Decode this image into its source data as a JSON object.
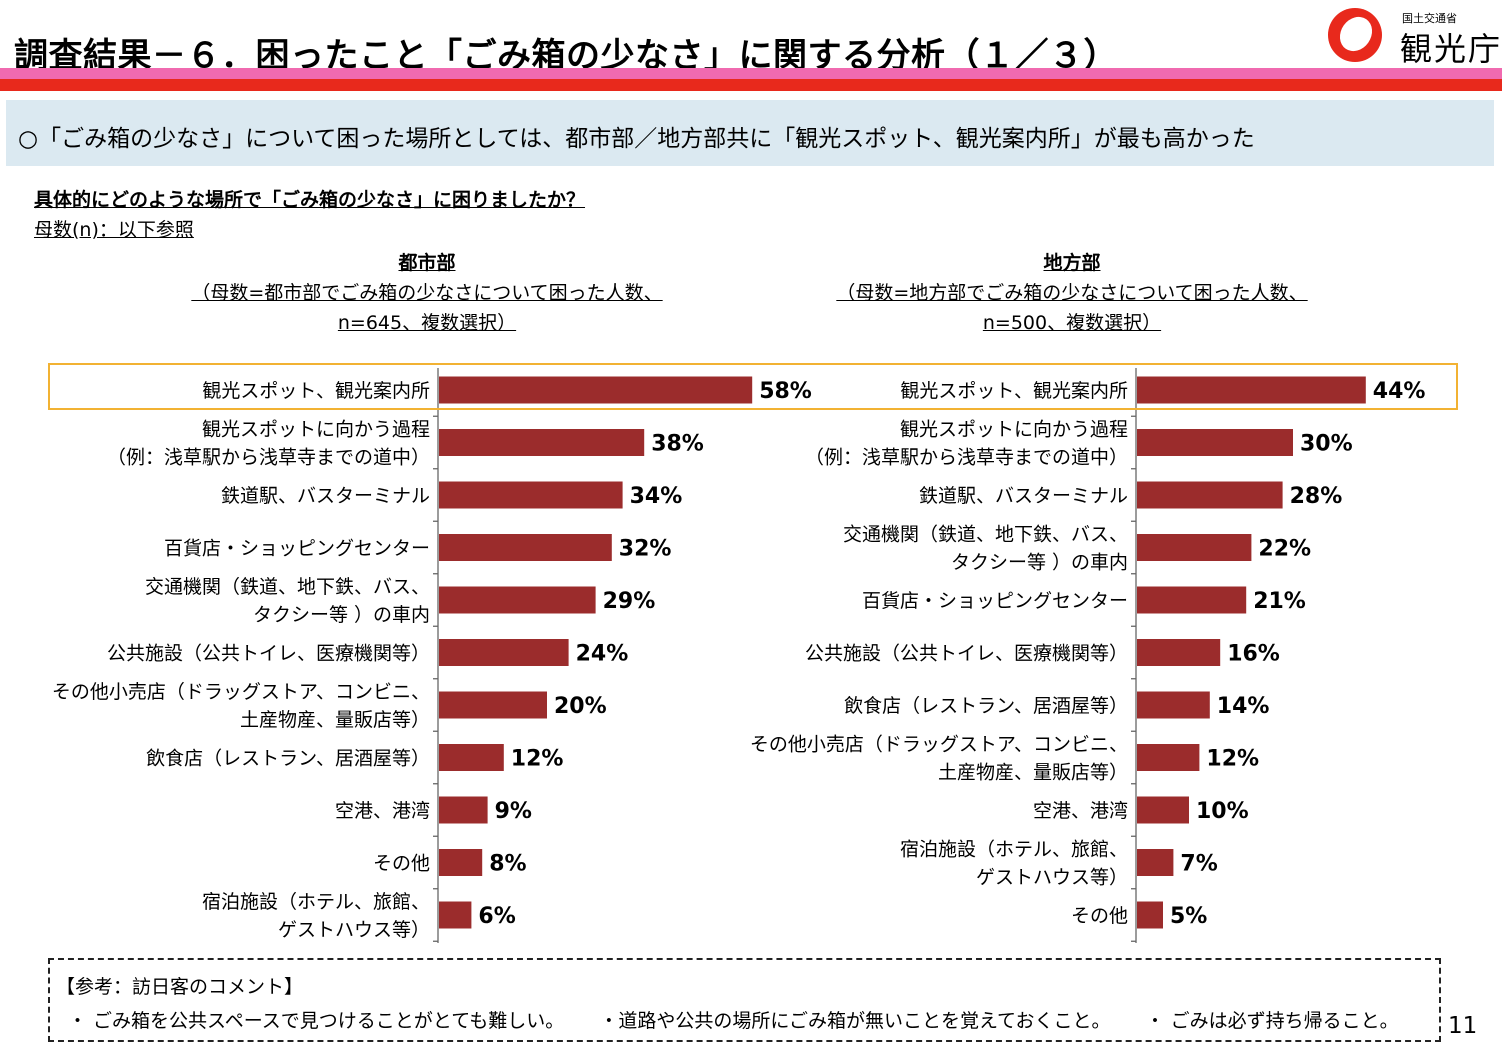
{
  "page": {
    "title": "調査結果－６．困ったこと「ごみ箱の少なさ」に関する分析（１／３）",
    "logo": {
      "small_text": "国土交通省",
      "big_text": "観光庁"
    },
    "summary": "○「ごみ箱の少なさ」について困った場所としては、都市部／地方部共に「観光スポット、観光案内所」が最も高かった",
    "question": "具体的にどのような場所で「ごみ箱の少なさ」に困りましたか？",
    "base_note": "母数(n)：以下参照",
    "page_number": "11",
    "highlight_color": "#f2b233",
    "bar_color": "#9b2c2c"
  },
  "panels": {
    "urban": {
      "title": "都市部",
      "note_line1": "（母数=都市部でごみ箱の少なさについて困った人数、",
      "note_line2": "n=645、複数選択）"
    },
    "rural": {
      "title": "地方部",
      "note_line1": "（母数=地方部でごみ箱の少なさについて困った人数、",
      "note_line2": "n=500、複数選択）"
    }
  },
  "chart_data": [
    {
      "type": "bar",
      "orientation": "horizontal",
      "title": "都市部",
      "categories": [
        [
          "観光スポット、観光案内所"
        ],
        [
          "観光スポットに向かう過程",
          "（例：浅草駅から浅草寺までの道中）"
        ],
        [
          "鉄道駅、バスターミナル"
        ],
        [
          "百貨店・ショッピングセンター"
        ],
        [
          "交通機関（鉄道、地下鉄、バス、",
          "タクシー等 ）の車内"
        ],
        [
          "公共施設（公共トイレ、医療機関等）"
        ],
        [
          "その他小売店（ドラッグストア、コンビニ、",
          "土産物産、量販店等）"
        ],
        [
          "飲食店（レストラン、居酒屋等）"
        ],
        [
          "空港、港湾"
        ],
        [
          "その他"
        ],
        [
          "宿泊施設（ホテル、旅館、",
          "ゲストハウス等）"
        ]
      ],
      "values": [
        58,
        38,
        34,
        32,
        29,
        24,
        20,
        12,
        9,
        8,
        6
      ],
      "labels": [
        "58%",
        "38%",
        "34%",
        "32%",
        "29%",
        "24%",
        "20%",
        "12%",
        "9%",
        "8%",
        "6%"
      ],
      "unit": "%"
    },
    {
      "type": "bar",
      "orientation": "horizontal",
      "title": "地方部",
      "categories": [
        [
          "観光スポット、観光案内所"
        ],
        [
          "観光スポットに向かう過程",
          "（例：浅草駅から浅草寺までの道中）"
        ],
        [
          "鉄道駅、バスターミナル"
        ],
        [
          "交通機関（鉄道、地下鉄、バス、",
          "タクシー等 ）の車内"
        ],
        [
          "百貨店・ショッピングセンター"
        ],
        [
          "公共施設（公共トイレ、医療機関等）"
        ],
        [
          "飲食店（レストラン、居酒屋等）"
        ],
        [
          "その他小売店（ドラッグストア、コンビニ、",
          "土産物産、量販店等）"
        ],
        [
          "空港、港湾"
        ],
        [
          "宿泊施設（ホテル、旅館、",
          "ゲストハウス等）"
        ],
        [
          "その他"
        ]
      ],
      "values": [
        44,
        30,
        28,
        22,
        21,
        16,
        14,
        12,
        10,
        7,
        5
      ],
      "labels": [
        "44%",
        "30%",
        "28%",
        "22%",
        "21%",
        "16%",
        "14%",
        "12%",
        "10%",
        "7%",
        "5%"
      ],
      "unit": "%"
    }
  ],
  "reference": {
    "title": "【参考：訪日客のコメント】",
    "comments": [
      "・ ごみ箱を公共スペースで見つけることがとても難しい。",
      "・道路や公共の場所にごみ箱が無いことを覚えておくこと。",
      "・ ごみは必ず持ち帰ること。"
    ]
  }
}
